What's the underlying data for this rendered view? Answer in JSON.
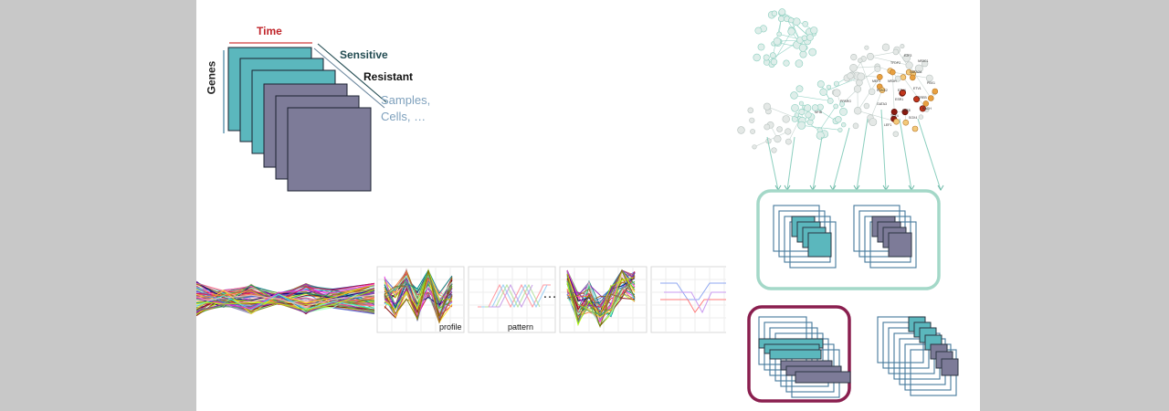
{
  "labels": {
    "time": "Time",
    "genes": "Genes",
    "sensitive": "Sensitive",
    "resistant": "Resistant",
    "samples": "Samples,\nCells, …",
    "profile": "profile",
    "pattern": "pattern",
    "ellipsis": "…"
  },
  "network_gene_labels": [
    "E2F3",
    "TFDP2",
    "GATA2A",
    "NR3C1",
    "RUNX2",
    "PPARG",
    "NR3H",
    "GATA3",
    "ESR1",
    "ETV1",
    "CREB",
    "ZNF8",
    "TCF4",
    "BACH",
    "MEF2",
    "ETV4",
    "SOX4",
    "LEF1",
    "NFIB",
    "PBX1"
  ],
  "colors": {
    "teal": "#5bb7bd",
    "slate": "#7d7b98",
    "red_line": "#d03a3a",
    "blue_line": "#44789b",
    "mint_border": "#a4d8c8",
    "maroon_border": "#8a1f4f",
    "network_teal": "#8ccfbf",
    "network_red": "#8b1a10",
    "network_orange": "#e8a040"
  }
}
